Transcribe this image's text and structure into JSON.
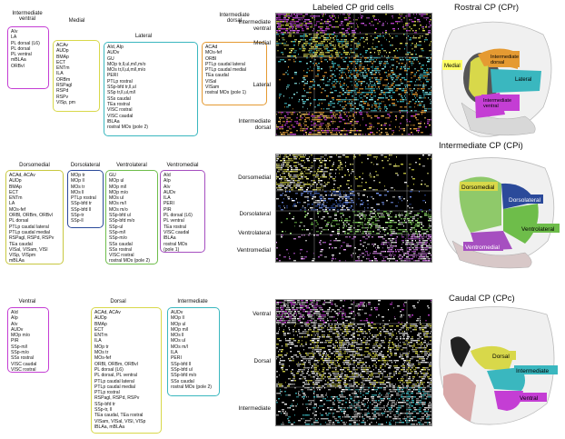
{
  "headings": {
    "rostral": "Rostral CP (CPr)",
    "intermediate": "Intermediate CP (CPi)",
    "caudal": "Caudal CP (CPc)",
    "labeled": "Labeled CP grid cells"
  },
  "colors": {
    "magenta": "#c43ed4",
    "yellow": "#d8d84a",
    "teal": "#3ab7bf",
    "orange": "#e59a32",
    "olive": "#c8c840",
    "navy": "#2b4a9a",
    "green": "#6ebd4a",
    "purple": "#a64fc0"
  },
  "rostral": {
    "groups": [
      {
        "title": "Intermediate\nventral",
        "items": [
          "AIv",
          "LA",
          "PL dorsal (L6)",
          "PL dorsal",
          "PL ventral",
          "mBLAa",
          "ORBvl"
        ]
      },
      {
        "title": "Medial",
        "items": [
          "ACAv",
          "AUDp",
          "BMAp",
          "ECT",
          "ENTm",
          "ILA",
          "ORBm",
          "RSPagl",
          "RSPd",
          "RSPv",
          "VISp, pm"
        ]
      },
      {
        "title": "Lateral",
        "items": [
          "AId, AIp",
          "AUDv",
          "GU",
          "MOp tr,ll,ul,m/l,m/o",
          "MOs tr,ll,ul,m/l,m/o",
          "PERI",
          "PTLp rostral",
          "SSp-bfd tr,ll,ul",
          "SSp tr,ll,ul,m/l",
          "SSs caudal",
          "TEa rostral",
          "VISC rostral",
          "VISC caudal",
          "lBLAa",
          "rostral MOs (pole 2)"
        ]
      },
      {
        "title": "Intermediate\ndorsal",
        "items": [
          "ACAd",
          "MOs-fef",
          "ORBl",
          "PTLp caudal lateral",
          "PTLp caudal medial",
          "TEa caudal",
          "VISal",
          "VISam",
          "rostral MOs (pole 1)"
        ]
      }
    ],
    "rows": [
      "Intermediate\nventral",
      "Medial",
      "Lateral",
      "Intermediate\ndorsal"
    ],
    "atlas_labels": [
      "Medial",
      "Intermediate\ndorsal",
      "Lateral",
      "Intermediate\nventral"
    ]
  },
  "intermediate": {
    "groups": [
      {
        "title": "Dorsomedial",
        "items": [
          "ACAd, ACAv",
          "AUDp",
          "BMAp",
          "ECT",
          "ENTm",
          "LA",
          "MOs-fef",
          "ORBl, ORBm, ORBvl",
          "PL dorsal",
          "PTLp caudal lateral",
          "PTLp caudal medial",
          "RSPagl, RSPd, RSPv",
          "TEa caudal",
          "VISal, VISam, VISl",
          "VISp, VISpm",
          "mBLAa"
        ]
      },
      {
        "title": "Dorsolateral",
        "items": [
          "MOp tr",
          "MOp ll",
          "MOs tr",
          "MOs ll",
          "PTLp rostral",
          "SSp-bfd tr",
          "SSp-bfd ll",
          "SSp-tr",
          "SSp-ll"
        ]
      },
      {
        "title": "Ventrolateral",
        "items": [
          "GU",
          "MOp ul",
          "MOp m/l",
          "MOp m/o",
          "MOs ul",
          "MOs m/l",
          "MOs m/o",
          "SSp-bfd ul",
          "SSp-bfd m/o",
          "SSp-ul",
          "SSp-m/l",
          "SSp-m/o",
          "SSs caudal",
          "SSs rostral",
          "VISC rostral",
          "rostral MOs (pole 2)"
        ]
      },
      {
        "title": "Ventromedial",
        "items": [
          "AId",
          "AIp",
          "AIv",
          "AUDv",
          "ILA",
          "PERI",
          "PIR",
          "PL dorsal (L6)",
          "PL ventral",
          "TEa rostral",
          "VISC caudal",
          "lBLAa",
          "rostral MOs",
          "(pole 1)"
        ]
      }
    ],
    "rows": [
      "Dorsomedial",
      "Dorsolateral",
      "Ventrolateral",
      "Ventromedial"
    ],
    "atlas_labels": [
      "Dorsomedial",
      "Dorsolateral",
      "Ventrolateral",
      "Ventromedial"
    ]
  },
  "caudal": {
    "groups": [
      {
        "title": "Ventral",
        "items": [
          "AId",
          "AIp",
          "AIv",
          "AUDv",
          "MOp m/o",
          "PIR",
          "SSp-m/l",
          "SSp-m/o",
          "SSs rostral",
          "VISC caudal",
          "VISC rostral"
        ]
      },
      {
        "title": "Dorsal",
        "items": [
          "ACAd, ACAv",
          "AUDp",
          "BMAp",
          "ECT",
          "ENTm",
          "ILA",
          "MOp tr",
          "MOs tr",
          "MOs-fef",
          "ORBl, ORBm, ORBvl",
          "PL dorsal (L6)",
          "PL dorsal, PL ventral",
          "PTLp caudal lateral",
          "PTLp caudal medial",
          "PTLp rostral",
          "RSPagl, RSPd, RSPv",
          "SSp-bfd tr",
          "SSp-tr, ll",
          "TEa caudal, TEa rostral",
          "VISam, VISal, VISl, VISp",
          "lBLAa, mBLAa"
        ]
      },
      {
        "title": "Intermediate",
        "items": [
          "AUDv",
          "MOp ll",
          "MOp ul",
          "MOp m/l",
          "MOs ll",
          "MOs ul",
          "MOs m/l",
          "ILA",
          "PERI",
          "SSp-bfd ll",
          "SSp-bfd ul",
          "SSp-bfd m/o",
          "SSs caudal",
          "rostral MOs (pole 2)"
        ]
      }
    ],
    "rows": [
      "Ventral",
      "Dorsal",
      "Intermediate"
    ],
    "atlas_labels": [
      "Dorsal",
      "Intermediate",
      "Ventral"
    ]
  }
}
